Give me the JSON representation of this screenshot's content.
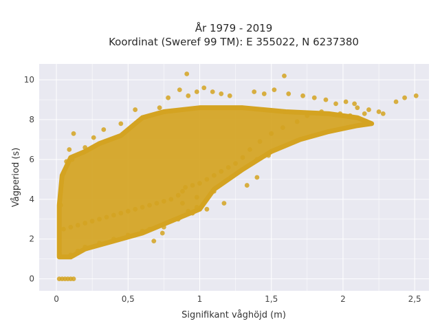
{
  "chart_data": {
    "type": "scatter",
    "title": "År 1979 - 2019",
    "subtitle": "Koordinat (Sweref 99 TM): E 355022, N 6237380",
    "xlabel": "Signifikant våghöjd (m)",
    "ylabel": "Vågperiod (s)",
    "xlim": [
      -0.12,
      2.6
    ],
    "ylim": [
      -0.6,
      10.8
    ],
    "xticks": [
      0,
      0.5,
      1,
      1.5,
      2,
      2.5
    ],
    "xtick_labels": [
      "0",
      "0,5",
      "1",
      "1,5",
      "2",
      "2,5"
    ],
    "yticks": [
      0,
      2,
      4,
      6,
      8,
      10
    ],
    "ytick_labels": [
      "0",
      "2",
      "4",
      "6",
      "8",
      "10"
    ],
    "grid": true,
    "colors": {
      "marker": "#D4A321",
      "plot_bg": "#E9E9F1",
      "grid": "#ffffff"
    },
    "points": [
      [
        0.02,
        0
      ],
      [
        0.04,
        0
      ],
      [
        0.06,
        0
      ],
      [
        0.08,
        0
      ],
      [
        0.1,
        0
      ],
      [
        0.12,
        0
      ],
      [
        0.02,
        1.2
      ],
      [
        0.03,
        3.7
      ],
      [
        0.05,
        5.3
      ],
      [
        0.07,
        5.9
      ],
      [
        0.09,
        6.5
      ],
      [
        0.11,
        6.0
      ],
      [
        0.1,
        1.2
      ],
      [
        0.15,
        1.4
      ],
      [
        0.2,
        1.6
      ],
      [
        0.3,
        1.8
      ],
      [
        0.4,
        2.0
      ],
      [
        0.5,
        2.2
      ],
      [
        0.6,
        2.4
      ],
      [
        0.12,
        7.3
      ],
      [
        0.2,
        6.6
      ],
      [
        0.26,
        7.1
      ],
      [
        0.33,
        7.5
      ],
      [
        0.45,
        7.8
      ],
      [
        0.55,
        8.5
      ],
      [
        0.65,
        8.2
      ],
      [
        0.72,
        8.6
      ],
      [
        0.78,
        9.1
      ],
      [
        0.86,
        9.5
      ],
      [
        0.92,
        9.2
      ],
      [
        0.98,
        9.4
      ],
      [
        1.03,
        9.6
      ],
      [
        1.09,
        9.4
      ],
      [
        1.15,
        9.3
      ],
      [
        1.21,
        9.2
      ],
      [
        0.91,
        10.3
      ],
      [
        1.59,
        10.2
      ],
      [
        1.38,
        9.4
      ],
      [
        1.45,
        9.3
      ],
      [
        1.52,
        9.5
      ],
      [
        1.62,
        9.3
      ],
      [
        1.72,
        9.2
      ],
      [
        1.8,
        9.1
      ],
      [
        1.88,
        9.0
      ],
      [
        1.95,
        8.8
      ],
      [
        2.02,
        8.9
      ],
      [
        2.08,
        8.8
      ],
      [
        2.1,
        8.6
      ],
      [
        2.18,
        8.5
      ],
      [
        2.25,
        8.4
      ],
      [
        2.37,
        8.9
      ],
      [
        2.43,
        9.1
      ],
      [
        2.51,
        9.2
      ],
      [
        2.28,
        8.3
      ],
      [
        2.15,
        8.3
      ],
      [
        2.05,
        8.2
      ],
      [
        1.98,
        8.3
      ],
      [
        1.85,
        8.4
      ],
      [
        1.75,
        8.2
      ],
      [
        1.68,
        7.9
      ],
      [
        1.58,
        7.6
      ],
      [
        1.5,
        7.3
      ],
      [
        1.42,
        6.9
      ],
      [
        1.35,
        6.5
      ],
      [
        1.3,
        6.1
      ],
      [
        1.4,
        6.0
      ],
      [
        1.25,
        5.8
      ],
      [
        1.2,
        5.6
      ],
      [
        1.15,
        5.4
      ],
      [
        1.1,
        5.2
      ],
      [
        1.05,
        5.0
      ],
      [
        1.0,
        4.8
      ],
      [
        0.95,
        4.7
      ],
      [
        0.9,
        4.6
      ],
      [
        0.88,
        4.4
      ],
      [
        0.85,
        4.2
      ],
      [
        0.8,
        4.0
      ],
      [
        0.75,
        3.9
      ],
      [
        0.7,
        3.8
      ],
      [
        0.65,
        3.7
      ],
      [
        0.6,
        3.6
      ],
      [
        0.55,
        3.5
      ],
      [
        0.5,
        3.4
      ],
      [
        0.45,
        3.3
      ],
      [
        0.4,
        3.2
      ],
      [
        0.35,
        3.1
      ],
      [
        0.3,
        3.0
      ],
      [
        0.25,
        2.9
      ],
      [
        0.2,
        2.8
      ],
      [
        0.15,
        2.7
      ],
      [
        0.1,
        2.6
      ],
      [
        0.05,
        2.5
      ],
      [
        1.05,
        3.5
      ],
      [
        0.98,
        3.6
      ],
      [
        0.92,
        3.4
      ],
      [
        0.85,
        3.0
      ],
      [
        0.75,
        2.6
      ],
      [
        0.65,
        2.5
      ],
      [
        0.55,
        2.2
      ],
      [
        0.74,
        2.3
      ],
      [
        0.68,
        1.9
      ],
      [
        1.17,
        3.8
      ],
      [
        1.4,
        5.1
      ],
      [
        1.48,
        6.2
      ],
      [
        1.33,
        4.7
      ],
      [
        1.22,
        5.1
      ],
      [
        1.1,
        4.4
      ],
      [
        0.98,
        4.1
      ],
      [
        0.88,
        3.8
      ],
      [
        0.95,
        3.3
      ]
    ]
  }
}
